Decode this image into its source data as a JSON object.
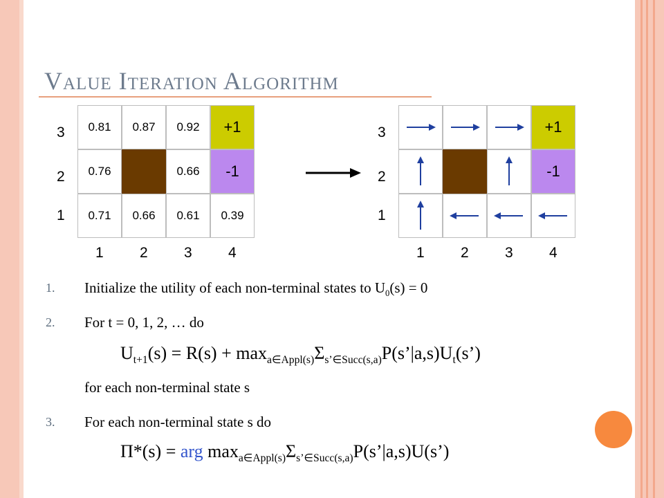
{
  "title": "Value Iteration Algorithm",
  "colors": {
    "positive": "#cccc00",
    "negative": "#bb88ee",
    "obstacle": "#6a3a00",
    "arrow": "#1f3f9f",
    "accent": "#f7893e"
  },
  "left_grid": {
    "rows": [
      [
        "0.81",
        "0.87",
        "0.92",
        "+1"
      ],
      [
        "0.76",
        "",
        "0.66",
        "-1"
      ],
      [
        "0.71",
        "0.66",
        "0.61",
        "0.39"
      ]
    ],
    "row_labels": [
      "3",
      "2",
      "1"
    ],
    "col_labels": [
      "1",
      "2",
      "3",
      "4"
    ]
  },
  "right_grid": {
    "rows": [
      [
        "right-arrow-icon",
        "right-arrow-icon",
        "right-arrow-icon",
        "+1"
      ],
      [
        "up-arrow-icon",
        "",
        "up-arrow-icon",
        "-1"
      ],
      [
        "up-arrow-icon",
        "left-arrow-icon",
        "left-arrow-icon",
        "left-arrow-icon"
      ]
    ],
    "row_labels": [
      "3",
      "2",
      "1"
    ],
    "col_labels": [
      "1",
      "2",
      "3",
      "4"
    ]
  },
  "steps": {
    "n1": "1.",
    "s1_prefix": "Initialize the utility of each non-terminal states to U",
    "s1_sub": "0",
    "s1_suffix": "(s) = 0",
    "n2": "2.",
    "s2": "For t = 0, 1, 2, … do",
    "f1_a": "U",
    "f1_a_sub": "t+1",
    "f1_b": "(s) = R(s) + max",
    "f1_b_sub": "a∈Appl(s)",
    "f1_c": "Σ",
    "f1_c_sub": "s’∈Succ(s,a)",
    "f1_d": "P(s’|a,s)U",
    "f1_d_sub": "t",
    "f1_e": "(s’)",
    "s2_note": "for each non-terminal state s",
    "n3": "3.",
    "s3": "For each non-terminal state s do",
    "f2_a": "Π*(s) = ",
    "f2_arg": "arg",
    "f2_b": " max",
    "f2_b_sub": "a∈Appl(s)",
    "f2_c": "Σ",
    "f2_c_sub": "s’∈Succ(s,a)",
    "f2_d": "P(s’|a,s)U(s’)"
  }
}
